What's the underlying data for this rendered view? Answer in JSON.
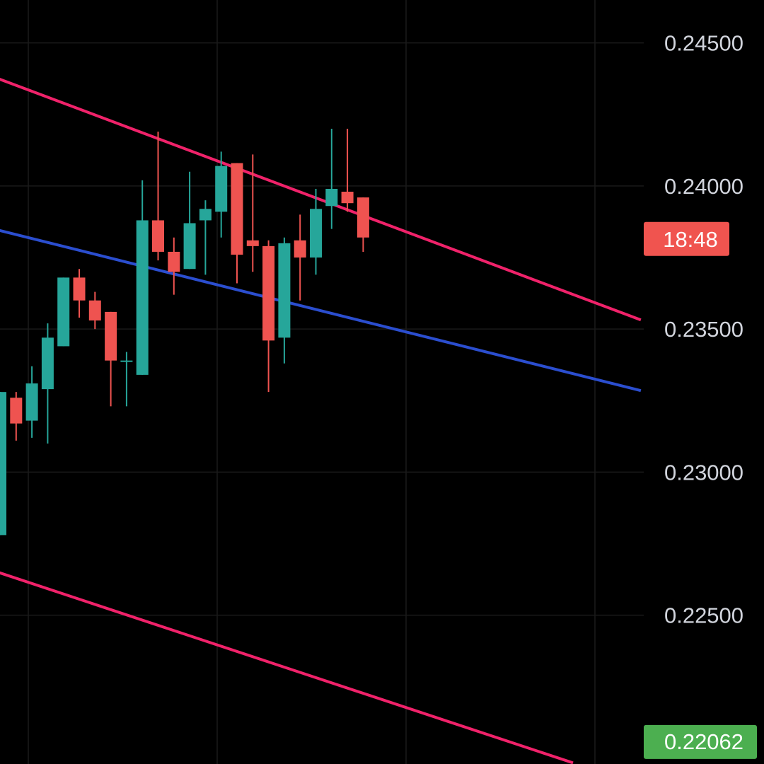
{
  "chart_data": {
    "type": "candlestick",
    "y_axis": {
      "position": "right",
      "ticks": [
        "0.24500",
        "0.24000",
        "0.23500",
        "0.23000",
        "0.22500"
      ],
      "range": [
        0.2198,
        0.2465
      ]
    },
    "grid": true,
    "countdown_badge": {
      "text": "18:48",
      "value": 0.23815,
      "color": "#f0544f"
    },
    "low_badge": {
      "text": "0.22062",
      "value": 0.22062,
      "color": "#4caf50"
    },
    "colors": {
      "up": "#26a69a",
      "down": "#ef5350",
      "channel": "#f0226a",
      "midline": "#2b4ecf",
      "background": "#000000",
      "grid": "#1a1a1a",
      "axis_text": "#d1d4dc"
    },
    "candles": [
      {
        "open": 0.2278,
        "high": 0.2328,
        "low": 0.2278,
        "close": 0.2328
      },
      {
        "open": 0.2326,
        "high": 0.2328,
        "low": 0.2311,
        "close": 0.2317
      },
      {
        "open": 0.2318,
        "high": 0.2337,
        "low": 0.2312,
        "close": 0.2331
      },
      {
        "open": 0.2329,
        "high": 0.2352,
        "low": 0.231,
        "close": 0.2347
      },
      {
        "open": 0.2344,
        "high": 0.2368,
        "low": 0.2344,
        "close": 0.2368
      },
      {
        "open": 0.2368,
        "high": 0.2371,
        "low": 0.2354,
        "close": 0.236
      },
      {
        "open": 0.236,
        "high": 0.2363,
        "low": 0.235,
        "close": 0.2353
      },
      {
        "open": 0.2356,
        "high": 0.2356,
        "low": 0.2323,
        "close": 0.2339
      },
      {
        "open": 0.2339,
        "high": 0.2342,
        "low": 0.2323,
        "close": 0.2339
      },
      {
        "open": 0.2334,
        "high": 0.2402,
        "low": 0.2334,
        "close": 0.2388
      },
      {
        "open": 0.2388,
        "high": 0.2419,
        "low": 0.2374,
        "close": 0.2377
      },
      {
        "open": 0.2377,
        "high": 0.2382,
        "low": 0.2362,
        "close": 0.237
      },
      {
        "open": 0.2371,
        "high": 0.2405,
        "low": 0.2371,
        "close": 0.2387
      },
      {
        "open": 0.2388,
        "high": 0.2395,
        "low": 0.2369,
        "close": 0.2392
      },
      {
        "open": 0.2391,
        "high": 0.2412,
        "low": 0.2382,
        "close": 0.2407
      },
      {
        "open": 0.2408,
        "high": 0.2408,
        "low": 0.2366,
        "close": 0.2376
      },
      {
        "open": 0.2381,
        "high": 0.2411,
        "low": 0.237,
        "close": 0.2379
      },
      {
        "open": 0.2379,
        "high": 0.2381,
        "low": 0.2328,
        "close": 0.2346
      },
      {
        "open": 0.2347,
        "high": 0.2382,
        "low": 0.2338,
        "close": 0.238
      },
      {
        "open": 0.2381,
        "high": 0.239,
        "low": 0.236,
        "close": 0.2375
      },
      {
        "open": 0.2375,
        "high": 0.2399,
        "low": 0.2369,
        "close": 0.2392
      },
      {
        "open": 0.2393,
        "high": 0.242,
        "low": 0.2385,
        "close": 0.2399
      },
      {
        "open": 0.2398,
        "high": 0.242,
        "low": 0.2391,
        "close": 0.2394
      },
      {
        "open": 0.2396,
        "high": 0.2396,
        "low": 0.2377,
        "close": 0.2382
      }
    ],
    "trendlines": [
      {
        "name": "channel-upper",
        "color": "#f0226a",
        "start": {
          "candle": -0.8,
          "price": 0.24389
        },
        "end": {
          "candle": 40.6,
          "price": 0.23532
        }
      },
      {
        "name": "channel-mid",
        "color": "#2b4ecf",
        "start": {
          "candle": -0.8,
          "price": 0.23855
        },
        "end": {
          "candle": 40.6,
          "price": 0.23285
        }
      },
      {
        "name": "channel-lower",
        "color": "#f0226a",
        "start": {
          "candle": -0.8,
          "price": 0.22662
        },
        "end": {
          "candle": 36.3,
          "price": 0.21984
        }
      }
    ]
  }
}
